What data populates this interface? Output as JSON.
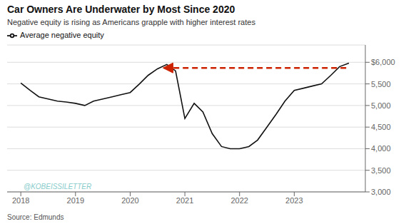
{
  "chart_data": {
    "type": "line",
    "title": "Car Owners Are Underwater by Most Since 2020",
    "subtitle": "Negative equity is rising as Americans grapple with higher interest rates",
    "source": "Source: Edmunds",
    "legend": "top-left",
    "grid": true,
    "x": [
      2018.0,
      2018.17,
      2018.33,
      2018.5,
      2018.67,
      2018.83,
      2019.0,
      2019.17,
      2019.33,
      2019.5,
      2019.67,
      2019.83,
      2020.0,
      2020.17,
      2020.33,
      2020.5,
      2020.67,
      2020.83,
      2021.0,
      2021.17,
      2021.33,
      2021.5,
      2021.67,
      2021.83,
      2022.0,
      2022.17,
      2022.33,
      2022.5,
      2022.67,
      2022.83,
      2023.0,
      2023.17,
      2023.33,
      2023.5,
      2023.67,
      2023.83,
      2024.0
    ],
    "series": [
      {
        "name": "Average negative equity",
        "color": "#111111",
        "values": [
          5520,
          5350,
          5200,
          5150,
          5100,
          5080,
          5050,
          5000,
          5100,
          5150,
          5200,
          5250,
          5300,
          5500,
          5700,
          5850,
          5950,
          5800,
          4700,
          5050,
          4850,
          4350,
          4050,
          4000,
          4000,
          4050,
          4200,
          4500,
          4800,
          5100,
          5350,
          5400,
          5450,
          5500,
          5700,
          5900,
          5980
        ]
      }
    ],
    "xlim": [
      2017.75,
      2024.3
    ],
    "xticks": [
      2018,
      2019,
      2020,
      2021,
      2022,
      2023
    ],
    "ylim": [
      3000,
      6400
    ],
    "yticks": [
      {
        "value": 3000,
        "label": "3,000"
      },
      {
        "value": 3500,
        "label": "3,500"
      },
      {
        "value": 4000,
        "label": "4,000"
      },
      {
        "value": 4500,
        "label": "4,500"
      },
      {
        "value": 5000,
        "label": "5,000"
      },
      {
        "value": 5500,
        "label": "5,500"
      },
      {
        "value": 6000,
        "label": "$6,000"
      }
    ],
    "annotations": [
      {
        "text": "@KOBEISSILETTER",
        "x": 2018.05,
        "y": 3020
      },
      {
        "type": "arrow",
        "x_start": 2023.95,
        "x_end": 2020.6,
        "y": 5870,
        "color": "#cc2200"
      }
    ]
  }
}
